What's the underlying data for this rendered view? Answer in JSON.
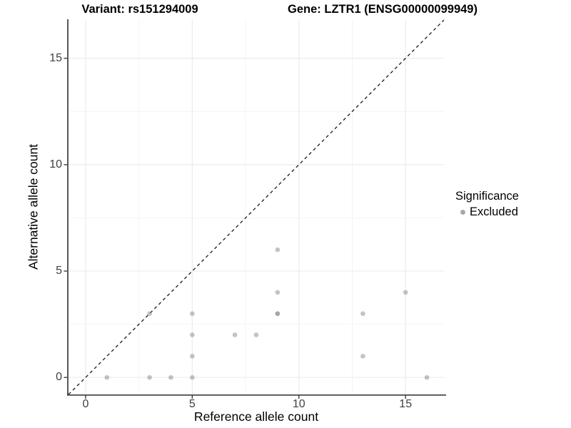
{
  "titles": {
    "variant": "Variant: rs151294009",
    "gene": "Gene: LZTR1 (ENSG00000099949)"
  },
  "colors": {
    "point": "#878787",
    "point_opacity": 0.5,
    "grid_major": "#e9e9e9",
    "grid_minor": "#f4f4f4",
    "axis_line": "#3c3c3c",
    "tick_mark": "#3c3c3c",
    "dashed_line": "#1a1a1a",
    "legend_swatch": "#a9a9a9"
  },
  "chart_data": {
    "type": "scatter",
    "title": "Variant: rs151294009 — Gene: LZTR1 (ENSG00000099949)",
    "xlabel": "Reference allele count",
    "ylabel": "Alternative allele count",
    "xlim": [
      -0.8,
      16.8
    ],
    "ylim": [
      -0.8,
      16.8
    ],
    "x_ticks": [
      0,
      5,
      10,
      15
    ],
    "y_ticks": [
      0,
      5,
      10,
      15
    ],
    "x_minor_gridlines": [
      2.5,
      7.5,
      12.5
    ],
    "y_minor_gridlines": [
      2.5,
      7.5,
      12.5
    ],
    "grid": "on",
    "reference_line": {
      "type": "identity y=x",
      "style": "dashed",
      "from": [
        -0.8,
        -0.8
      ],
      "to": [
        16.8,
        16.8
      ]
    },
    "legend": {
      "position": "right",
      "title": "Significance",
      "items": [
        {
          "label": "Excluded",
          "color": "#a9a9a9"
        }
      ]
    },
    "series": [
      {
        "name": "Excluded",
        "points": [
          [
            1,
            0
          ],
          [
            3,
            0
          ],
          [
            4,
            0
          ],
          [
            5,
            0
          ],
          [
            16,
            0
          ],
          [
            5,
            1
          ],
          [
            13,
            1
          ],
          [
            5,
            2
          ],
          [
            7,
            2
          ],
          [
            8,
            2
          ],
          [
            3,
            3
          ],
          [
            5,
            3
          ],
          [
            9,
            3
          ],
          [
            9,
            3
          ],
          [
            13,
            3
          ],
          [
            9,
            4
          ],
          [
            15,
            4
          ],
          [
            9,
            6
          ]
        ]
      }
    ]
  }
}
